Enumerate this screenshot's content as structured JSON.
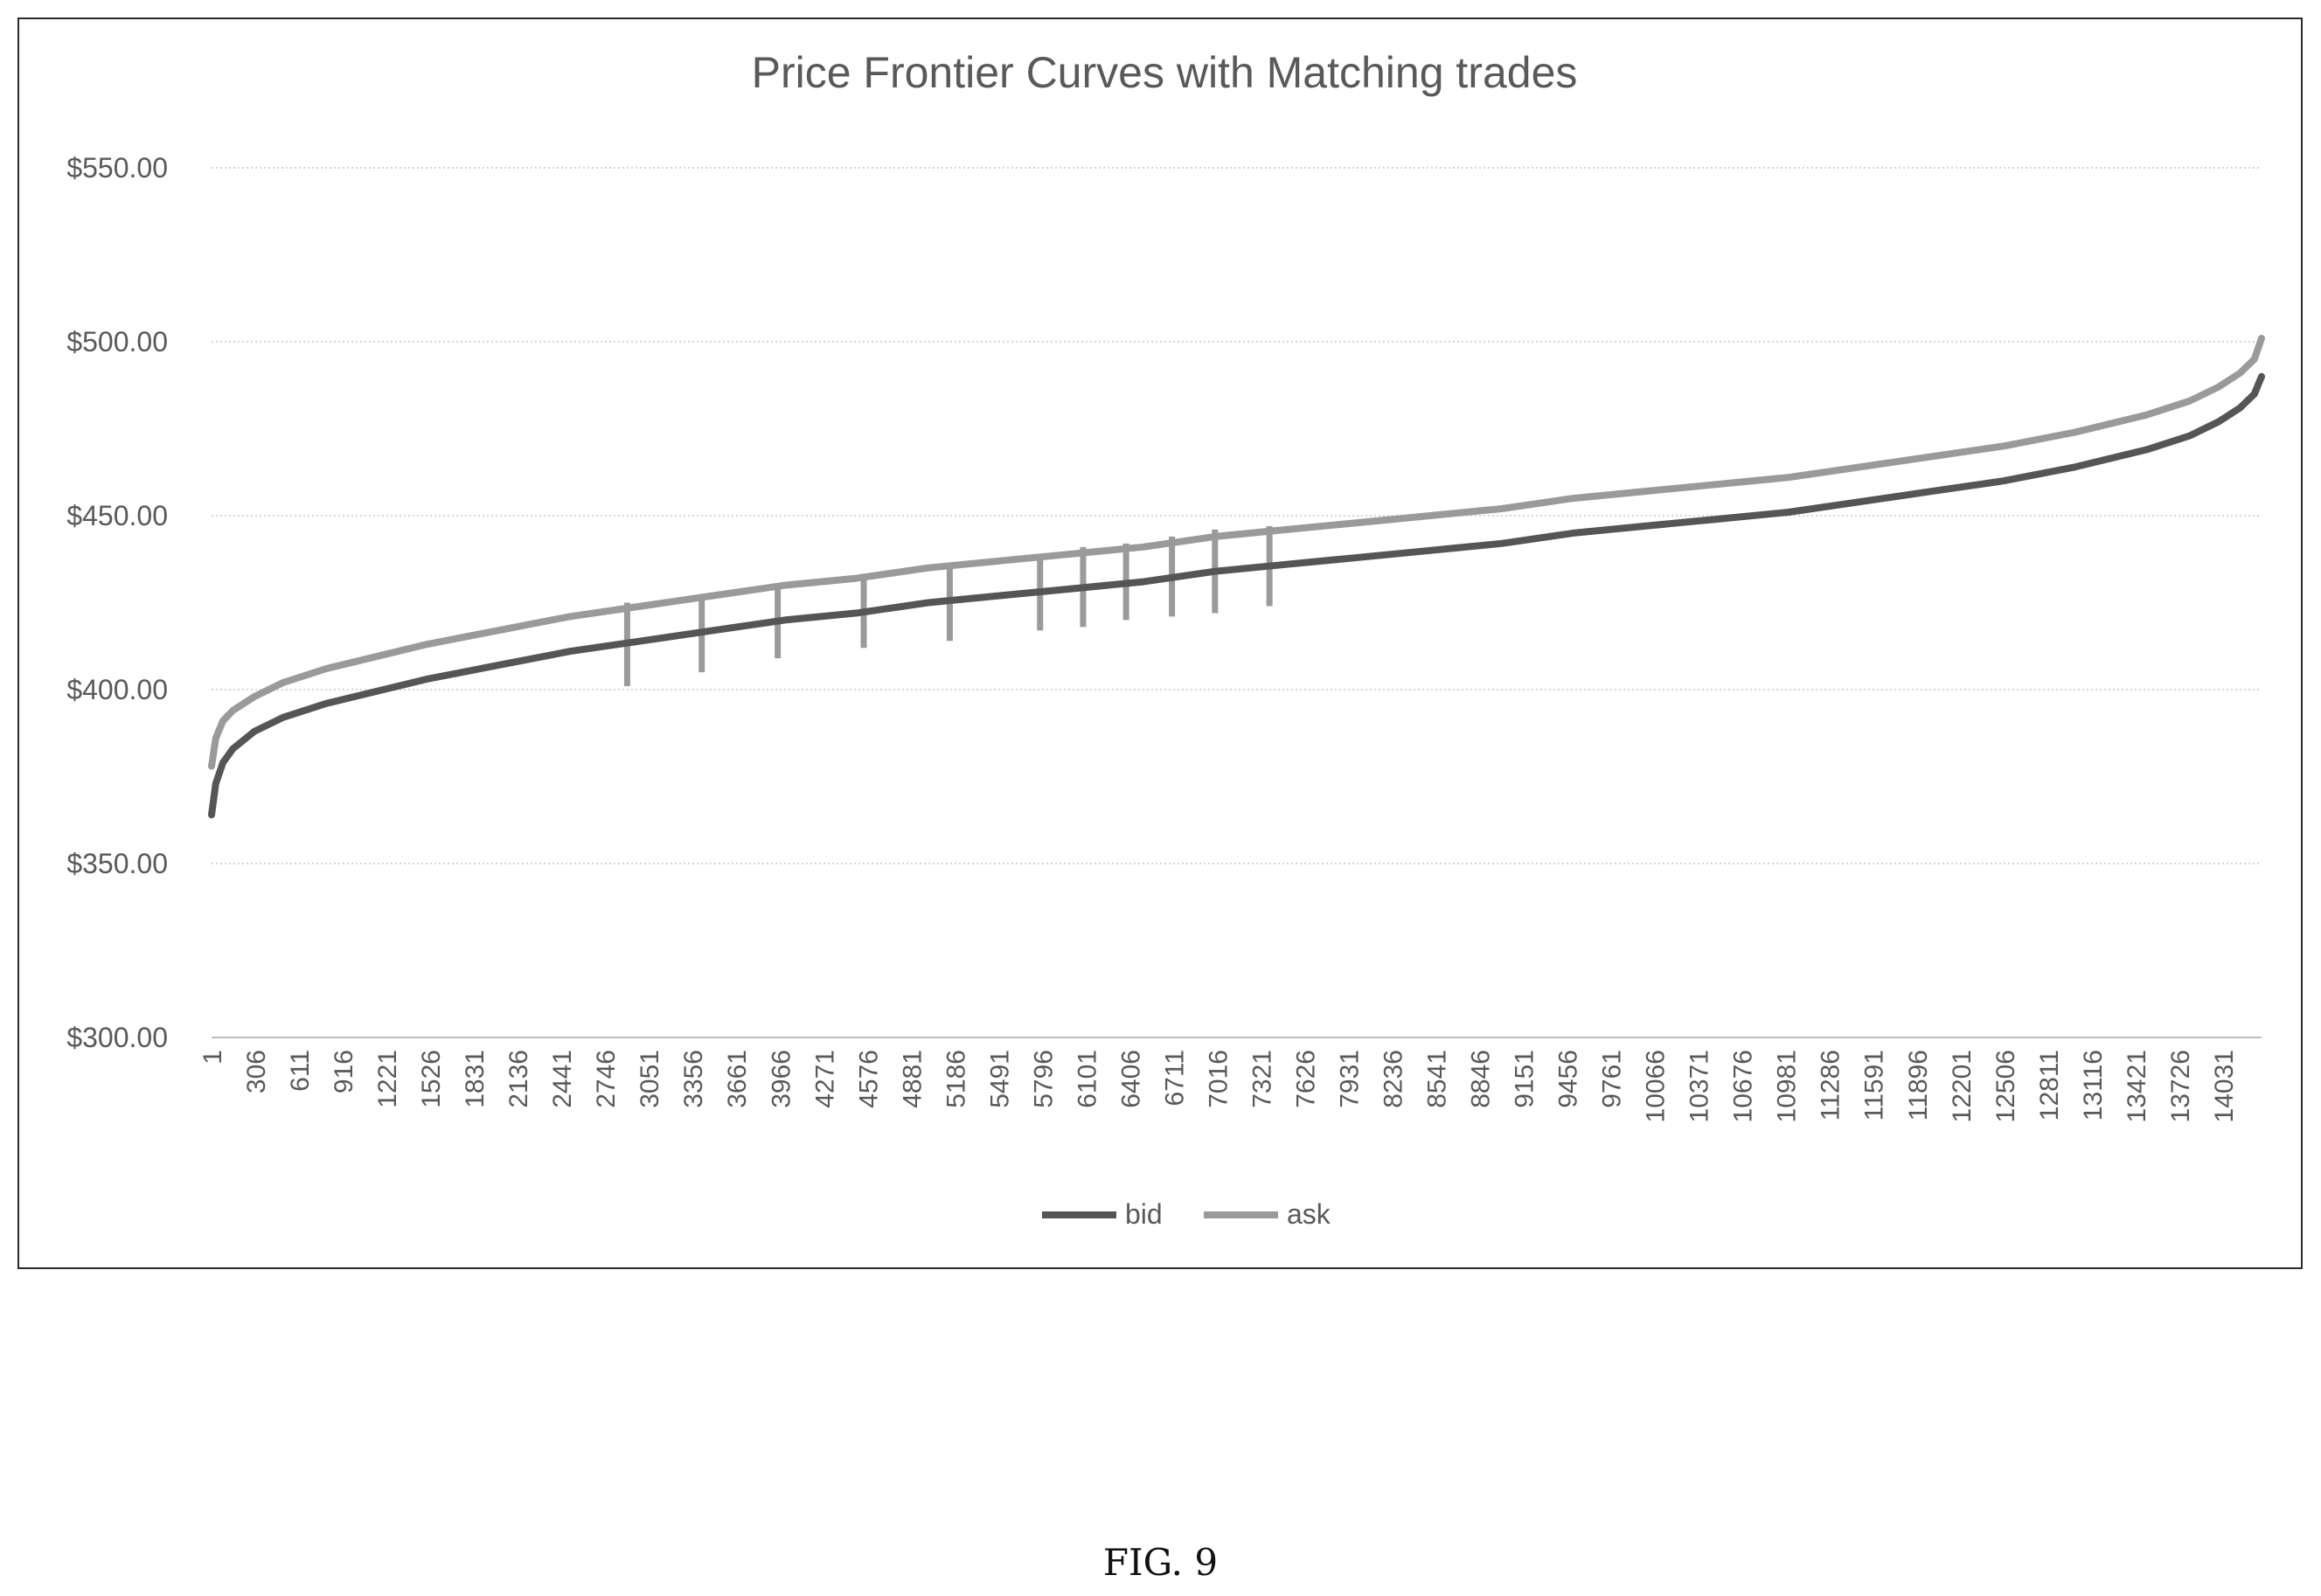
{
  "chart_data": {
    "type": "line",
    "title": "Price Frontier Curves with Matching trades",
    "xlabel": "",
    "ylabel": "",
    "ylim": [
      300,
      550
    ],
    "xlim": [
      1,
      14300
    ],
    "y_ticks": [
      "$300.00",
      "$350.00",
      "$400.00",
      "$450.00",
      "$500.00",
      "$550.00"
    ],
    "y_tick_values": [
      300,
      350,
      400,
      450,
      500,
      550
    ],
    "x_ticks": [
      "1",
      "306",
      "611",
      "916",
      "1221",
      "1526",
      "1831",
      "2136",
      "2441",
      "2746",
      "3051",
      "3356",
      "3661",
      "3966",
      "4271",
      "4576",
      "4881",
      "5186",
      "5491",
      "5796",
      "6101",
      "6406",
      "6711",
      "7016",
      "7321",
      "7626",
      "7931",
      "8236",
      "8541",
      "8846",
      "9151",
      "9456",
      "9761",
      "10066",
      "10371",
      "10676",
      "10981",
      "11286",
      "11591",
      "11896",
      "12201",
      "12506",
      "12811",
      "13116",
      "13421",
      "13726",
      "14031"
    ],
    "x_tick_values": [
      1,
      306,
      611,
      916,
      1221,
      1526,
      1831,
      2136,
      2441,
      2746,
      3051,
      3356,
      3661,
      3966,
      4271,
      4576,
      4881,
      5186,
      5491,
      5796,
      6101,
      6406,
      6711,
      7016,
      7321,
      7626,
      7931,
      8236,
      8541,
      8846,
      9151,
      9456,
      9761,
      10066,
      10371,
      10676,
      10981,
      11286,
      11591,
      11896,
      12201,
      12506,
      12811,
      13116,
      13421,
      13726,
      14031
    ],
    "grid": true,
    "legend_position": "bottom",
    "series": [
      {
        "name": "bid",
        "color": "#555555",
        "x": [
          1,
          30,
          80,
          150,
          300,
          500,
          800,
          1100,
          1500,
          2000,
          2500,
          3000,
          3500,
          4000,
          4500,
          5000,
          5500,
          6000,
          6500,
          7000,
          7500,
          8000,
          8500,
          9000,
          9500,
          10000,
          10500,
          11000,
          11500,
          12000,
          12500,
          13000,
          13500,
          13800,
          14000,
          14150,
          14250,
          14300
        ],
        "y": [
          364,
          373,
          379,
          383,
          388,
          392,
          396,
          399,
          403,
          407,
          411,
          414,
          417,
          420,
          422,
          425,
          427,
          429,
          431,
          434,
          436,
          438,
          440,
          442,
          445,
          447,
          449,
          451,
          454,
          457,
          460,
          464,
          469,
          473,
          477,
          481,
          485,
          490
        ]
      },
      {
        "name": "ask",
        "color": "#9a9a9a",
        "x": [
          1,
          30,
          80,
          150,
          300,
          500,
          800,
          1100,
          1500,
          2000,
          2500,
          3000,
          3500,
          4000,
          4500,
          5000,
          5500,
          6000,
          6500,
          7000,
          7500,
          8000,
          8500,
          9000,
          9500,
          10000,
          10500,
          11000,
          11500,
          12000,
          12500,
          13000,
          13500,
          13800,
          14000,
          14150,
          14250,
          14300
        ],
        "y": [
          378,
          386,
          391,
          394,
          398,
          402,
          406,
          409,
          413,
          417,
          421,
          424,
          427,
          430,
          432,
          435,
          437,
          439,
          441,
          444,
          446,
          448,
          450,
          452,
          455,
          457,
          459,
          461,
          464,
          467,
          470,
          474,
          479,
          483,
          487,
          491,
          495,
          501
        ]
      }
    ],
    "matching_trades": {
      "color": "#9a9a9a",
      "x": [
        2900,
        3420,
        3950,
        4550,
        5150,
        5780,
        6080,
        6380,
        6700,
        7000,
        7380
      ],
      "y_low": [
        401,
        405,
        409,
        412,
        414,
        417,
        418,
        420,
        421,
        422,
        424
      ],
      "y_high": [
        425,
        427,
        430,
        433,
        436,
        439,
        441,
        442,
        444,
        446,
        447
      ]
    }
  },
  "caption": "FIG. 9"
}
